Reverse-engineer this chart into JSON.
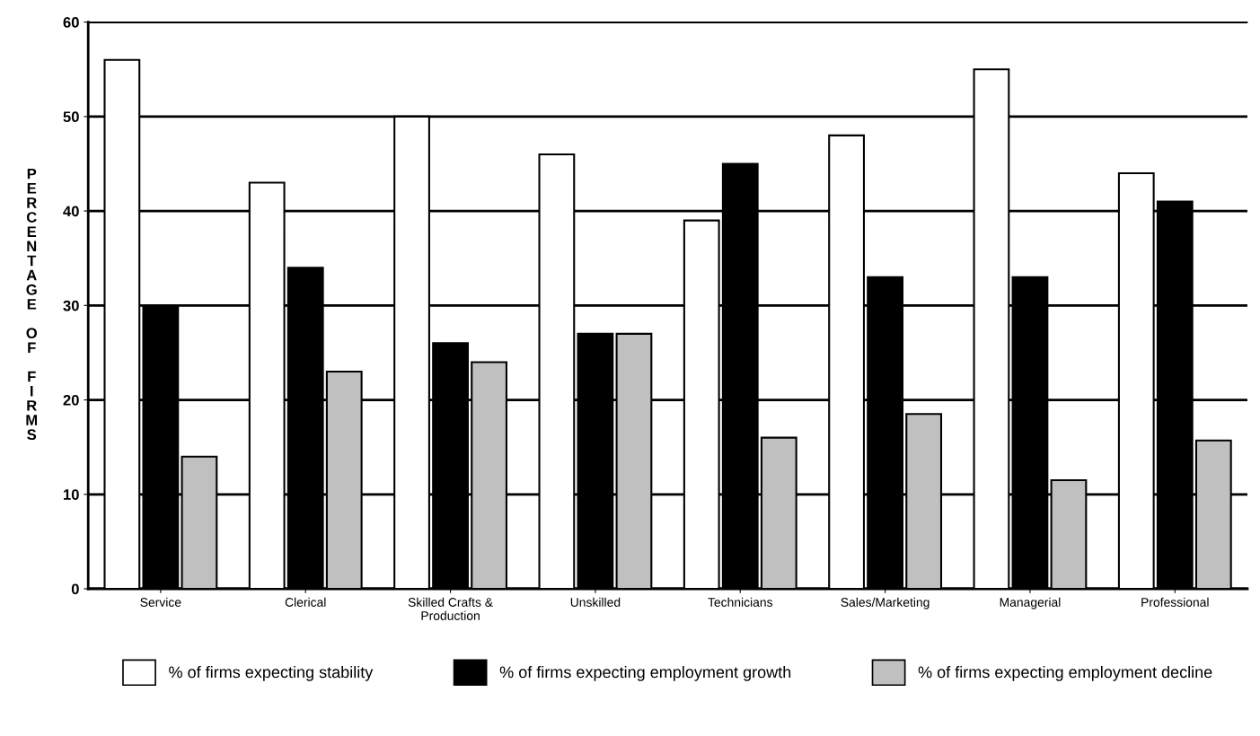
{
  "chart_data": {
    "type": "bar",
    "ylabel": "PERCENTAGE OF FIRMS",
    "categories": [
      "Service",
      "Clerical",
      "Skilled Crafts &\nProduction",
      "Unskilled",
      "Technicians",
      "Sales/Marketing",
      "Managerial",
      "Professional"
    ],
    "series": [
      {
        "name": "% of firms expecting stability",
        "color": "#ffffff",
        "values": [
          56,
          43,
          50,
          46,
          39,
          48,
          55,
          44
        ]
      },
      {
        "name": "% of firms expecting employment growth",
        "color": "#000000",
        "values": [
          30,
          34,
          26,
          27,
          45,
          33,
          33,
          41
        ]
      },
      {
        "name": "% of firms expecting employment decline",
        "color": "#c0c0c0",
        "values": [
          14,
          23,
          24,
          27,
          16,
          18.5,
          11.5,
          15.7
        ]
      }
    ],
    "ylim": [
      0,
      60
    ],
    "yticks": [
      0,
      10,
      20,
      30,
      40,
      50,
      60
    ],
    "grid": "y",
    "legend": "bottom"
  }
}
